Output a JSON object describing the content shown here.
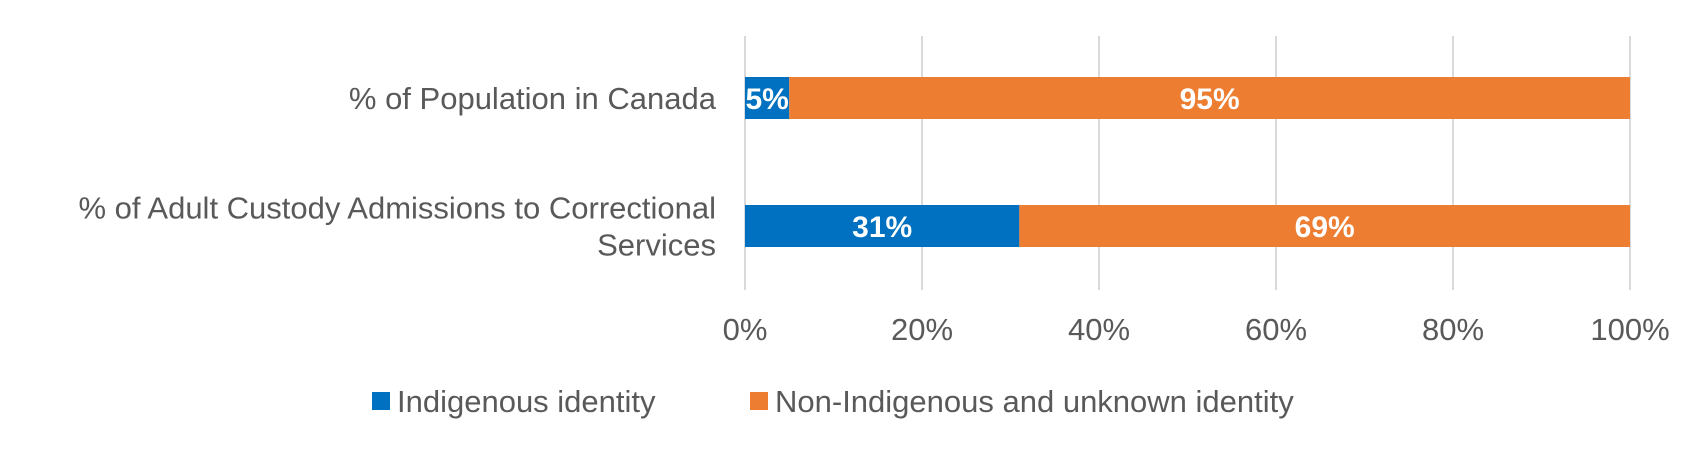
{
  "chart_data": {
    "type": "bar",
    "orientation": "horizontal",
    "stacked": true,
    "categories": [
      [
        "% of Population in Canada"
      ],
      [
        "% of Adult Custody Admissions to Correctional",
        "Services"
      ]
    ],
    "series": [
      {
        "name": "Indigenous identity",
        "color": "#0070c0",
        "values": [
          5,
          31
        ],
        "labels": [
          "5%",
          "31%"
        ]
      },
      {
        "name": "Non-Indigenous and unknown identity",
        "color": "#ed7d31",
        "values": [
          95,
          69
        ],
        "labels": [
          "95%",
          "69%"
        ]
      }
    ],
    "xlim": [
      0,
      100
    ],
    "xticks": [
      0,
      20,
      40,
      60,
      80,
      100
    ],
    "xtick_labels": [
      "0%",
      "20%",
      "40%",
      "60%",
      "80%",
      "100%"
    ],
    "grid": "vertical",
    "legend_position": "bottom"
  }
}
